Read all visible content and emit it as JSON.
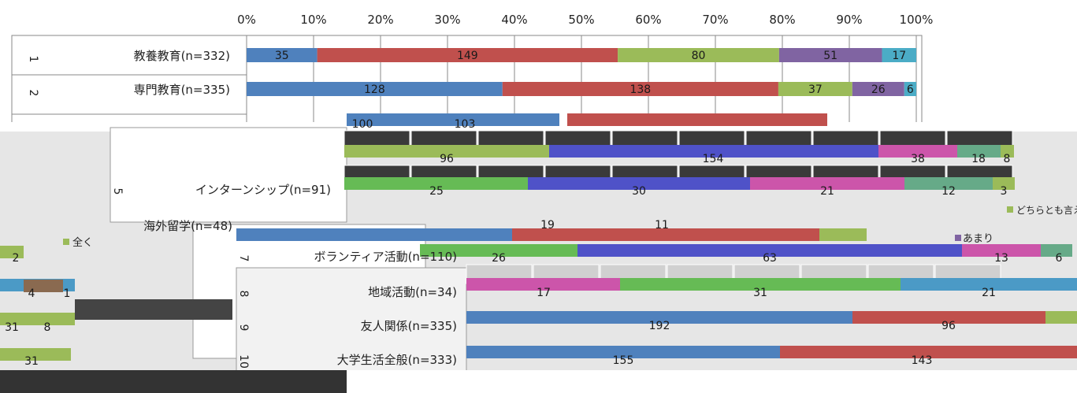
{
  "chart_data": {
    "type": "bar",
    "stacked": "percent",
    "orientation": "horizontal",
    "xlim": [
      0,
      100
    ],
    "ticks": [
      "0%",
      "10%",
      "20%",
      "30%",
      "40%",
      "50%",
      "60%",
      "70%",
      "80%",
      "90%",
      "100%"
    ],
    "grid": true,
    "categories": [
      {
        "num": "1",
        "label": "教養教育(n=332)"
      },
      {
        "num": "2",
        "label": "専門教育(n=335)"
      }
    ],
    "series": [
      {
        "values": [
          35,
          128
        ],
        "color": "#4f81bd"
      },
      {
        "values": [
          149,
          138
        ],
        "color": "#c0504d"
      },
      {
        "values": [
          80,
          37
        ],
        "color": "#9bbb59"
      },
      {
        "values": [
          51,
          26
        ],
        "color": "#8064a2"
      },
      {
        "values": [
          17,
          6
        ],
        "color": "#4bacc6"
      }
    ]
  },
  "fragments": {
    "row_labels": [
      {
        "num": "5",
        "label": "インターンシップ(n=91)"
      },
      {
        "num": "7",
        "label": "ボランティア活動(n=110)"
      },
      {
        "num": "8",
        "label": "地域活動(n=34)"
      },
      {
        "num": "9",
        "label": "友人関係(n=335)"
      },
      {
        "num": "10",
        "label": "大学生活全般(n=333)"
      },
      {
        "num": "",
        "label": "海外留学(n=48)"
      }
    ],
    "value_labels": [
      "96",
      "154",
      "38",
      "18",
      "8",
      "25",
      "30",
      "21",
      "12",
      "3",
      "26",
      "63",
      "13",
      "6",
      "17",
      "31",
      "21",
      "192",
      "96",
      "155",
      "143",
      "100",
      "103",
      "19",
      "11",
      "4",
      "1",
      "2",
      "31",
      "8",
      "31"
    ],
    "legend_labels": [
      "全く",
      "あまり",
      "どちらとも言えない"
    ]
  }
}
